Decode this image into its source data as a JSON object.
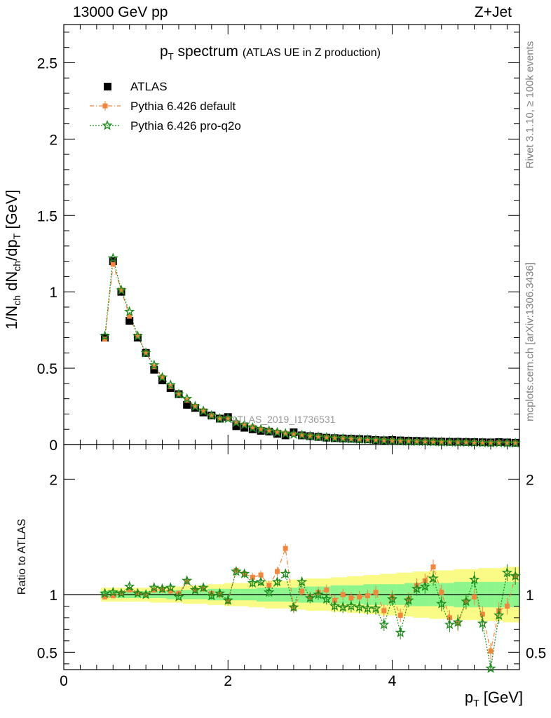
{
  "header": {
    "left": "13000 GeV pp",
    "right": "Z+Jet"
  },
  "title": {
    "main": "p",
    "main_sub": "T",
    "main_rest": " spectrum",
    "sub": "(ATLAS UE in Z production)"
  },
  "side_text": {
    "rivet": "Rivet 3.1.10, ≥ 100k events",
    "mcplots": "mcplots.cern.ch [arXiv:1306.3436]"
  },
  "watermark": "ATLAS_2019_I1736531",
  "legend": [
    {
      "name": "ATLAS",
      "color": "#000000"
    },
    {
      "name": "Pythia 6.426 default",
      "color": "#f5853a"
    },
    {
      "name": "Pythia 6.426 pro-q2o",
      "color": "#1a8a1a"
    }
  ],
  "colors": {
    "band_inner": "#8cf58c",
    "band_outer": "#fafa87",
    "data": "#000000",
    "default": "#f5853a",
    "proq2o": "#1a8a1a"
  },
  "chart_data": [
    {
      "type": "scatter",
      "title": "pT spectrum (ATLAS UE in Z production)",
      "xlabel": "pT [GeV]",
      "ylabel": "1/Nch dNch/dpT [GeV]",
      "xlim": [
        0,
        5.55
      ],
      "ylim": [
        0,
        2.75
      ],
      "x_ticks": [
        "0",
        "2",
        "4"
      ],
      "y_ticks": [
        "0",
        "0.5",
        "1",
        "1.5",
        "2",
        "2.5"
      ],
      "x": [
        0.5,
        0.6,
        0.7,
        0.8,
        0.9,
        1.0,
        1.1,
        1.2,
        1.3,
        1.4,
        1.5,
        1.6,
        1.7,
        1.8,
        1.9,
        2.0,
        2.1,
        2.2,
        2.3,
        2.4,
        2.5,
        2.6,
        2.7,
        2.8,
        2.9,
        3.0,
        3.1,
        3.2,
        3.3,
        3.4,
        3.5,
        3.6,
        3.7,
        3.8,
        3.9,
        4.0,
        4.1,
        4.2,
        4.3,
        4.4,
        4.5,
        4.6,
        4.7,
        4.8,
        4.9,
        5.0,
        5.1,
        5.2,
        5.3,
        5.4,
        5.5
      ],
      "series": [
        {
          "name": "ATLAS",
          "values": [
            0.7,
            1.2,
            1.0,
            0.81,
            0.7,
            0.6,
            0.49,
            0.42,
            0.37,
            0.33,
            0.26,
            0.24,
            0.21,
            0.19,
            0.17,
            0.18,
            0.12,
            0.11,
            0.1,
            0.09,
            0.085,
            0.07,
            0.06,
            0.08,
            0.06,
            0.055,
            0.05,
            0.045,
            0.042,
            0.04,
            0.038,
            0.036,
            0.034,
            0.03,
            0.028,
            0.03,
            0.027,
            0.025,
            0.024,
            0.022,
            0.02,
            0.019,
            0.018,
            0.018,
            0.017,
            0.016,
            0.015,
            0.014,
            0.016,
            0.014,
            0.012
          ]
        },
        {
          "name": "Pythia 6.426 default",
          "values": [
            0.69,
            1.18,
            1.01,
            0.84,
            0.71,
            0.6,
            0.51,
            0.44,
            0.38,
            0.33,
            0.29,
            0.25,
            0.22,
            0.19,
            0.17,
            0.17,
            0.145,
            0.13,
            0.115,
            0.1,
            0.092,
            0.082,
            0.074,
            0.068,
            0.062,
            0.056,
            0.051,
            0.047,
            0.043,
            0.04,
            0.037,
            0.034,
            0.032,
            0.03,
            0.027,
            0.025,
            0.023,
            0.022,
            0.02,
            0.019,
            0.018,
            0.017,
            0.016,
            0.015,
            0.014,
            0.013,
            0.012,
            0.011,
            0.011,
            0.01,
            0.01
          ]
        },
        {
          "name": "Pythia 6.426 pro-q2o",
          "values": [
            0.71,
            1.22,
            1.01,
            0.87,
            0.71,
            0.6,
            0.52,
            0.44,
            0.39,
            0.33,
            0.3,
            0.25,
            0.22,
            0.19,
            0.17,
            0.17,
            0.145,
            0.13,
            0.11,
            0.1,
            0.09,
            0.08,
            0.072,
            0.067,
            0.061,
            0.055,
            0.05,
            0.046,
            0.042,
            0.039,
            0.036,
            0.033,
            0.031,
            0.029,
            0.026,
            0.024,
            0.022,
            0.021,
            0.019,
            0.018,
            0.017,
            0.016,
            0.015,
            0.014,
            0.013,
            0.012,
            0.011,
            0.01,
            0.01,
            0.009,
            0.009
          ]
        }
      ]
    },
    {
      "type": "line",
      "title": "",
      "xlabel": "pT [GeV]",
      "ylabel": "Ratio to ATLAS",
      "xlim": [
        0,
        5.55
      ],
      "ylim": [
        0.35,
        2.3
      ],
      "y_ticks": [
        "0.5",
        "1",
        "2"
      ],
      "x": [
        0.5,
        0.6,
        0.7,
        0.8,
        0.9,
        1.0,
        1.1,
        1.2,
        1.3,
        1.4,
        1.5,
        1.6,
        1.7,
        1.8,
        1.9,
        2.0,
        2.1,
        2.2,
        2.3,
        2.4,
        2.5,
        2.6,
        2.7,
        2.8,
        2.9,
        3.0,
        3.1,
        3.2,
        3.3,
        3.4,
        3.5,
        3.6,
        3.7,
        3.8,
        3.9,
        4.0,
        4.1,
        4.2,
        4.3,
        4.4,
        4.5,
        4.6,
        4.7,
        4.8,
        4.9,
        5.0,
        5.1,
        5.2,
        5.3,
        5.4,
        5.5
      ],
      "band_inner_halfwidth": [
        0.03,
        0.03,
        0.03,
        0.03,
        0.03,
        0.03,
        0.03,
        0.03,
        0.04,
        0.04,
        0.04,
        0.04,
        0.04,
        0.05,
        0.05,
        0.05,
        0.05,
        0.05,
        0.05,
        0.06,
        0.06,
        0.06,
        0.06,
        0.06,
        0.07,
        0.07,
        0.07,
        0.07,
        0.08,
        0.08,
        0.08,
        0.08,
        0.09,
        0.09,
        0.09,
        0.09,
        0.09,
        0.1,
        0.1,
        0.1,
        0.1,
        0.1,
        0.1,
        0.11,
        0.11,
        0.11,
        0.11,
        0.11,
        0.11,
        0.11,
        0.11
      ],
      "band_outer_halfwidth": [
        0.06,
        0.06,
        0.06,
        0.06,
        0.06,
        0.06,
        0.07,
        0.07,
        0.07,
        0.07,
        0.08,
        0.08,
        0.08,
        0.09,
        0.09,
        0.1,
        0.1,
        0.1,
        0.11,
        0.11,
        0.12,
        0.12,
        0.12,
        0.13,
        0.13,
        0.14,
        0.14,
        0.14,
        0.15,
        0.15,
        0.16,
        0.16,
        0.17,
        0.17,
        0.18,
        0.18,
        0.19,
        0.19,
        0.2,
        0.2,
        0.21,
        0.21,
        0.21,
        0.22,
        0.22,
        0.22,
        0.23,
        0.23,
        0.23,
        0.24,
        0.24
      ],
      "series": [
        {
          "name": "Pythia 6.426 default",
          "values": [
            0.98,
            0.99,
            1.01,
            1.04,
            1.01,
            1.0,
            1.04,
            1.04,
            1.03,
            1.01,
            1.11,
            1.04,
            1.05,
            1.01,
            1.0,
            0.94,
            1.21,
            1.18,
            1.15,
            1.17,
            1.08,
            1.2,
            1.4,
            0.88,
            1.03,
            0.98,
            1.02,
            1.04,
            0.95,
            1.0,
            0.97,
            0.98,
            0.99,
            1.02,
            0.86,
            0.98,
            0.82,
            0.96,
            1.08,
            1.12,
            1.24,
            1.02,
            0.8,
            0.75,
            0.94,
            0.98,
            0.83,
            0.51,
            0.86,
            0.9,
            1.16
          ]
        },
        {
          "name": "Pythia 6.426 pro-q2o",
          "values": [
            1.01,
            1.02,
            1.01,
            1.07,
            1.01,
            1.0,
            1.06,
            1.05,
            1.06,
            0.98,
            1.12,
            1.04,
            1.06,
            0.99,
            1.01,
            0.95,
            1.2,
            1.18,
            1.1,
            1.11,
            1.02,
            1.11,
            1.18,
            0.89,
            1.11,
            0.97,
            1.0,
            0.96,
            0.9,
            0.89,
            0.9,
            0.89,
            0.88,
            0.88,
            0.74,
            0.96,
            0.67,
            0.95,
            1.05,
            1.07,
            1.14,
            0.92,
            0.74,
            0.76,
            0.94,
            1.13,
            0.75,
            0.36,
            0.82,
            1.19,
            1.16
          ]
        }
      ]
    }
  ],
  "ratio_ylabel": "Ratio to ATLAS",
  "xlabel": {
    "main": "p",
    "sub": "T",
    "rest": " [GeV]"
  },
  "ylabel": {
    "a": "1/N",
    "a_sub": "ch",
    "b": " dN",
    "b_sub": "ch",
    "c": "/dp",
    "c_sub": "T",
    "d": " [GeV]"
  }
}
